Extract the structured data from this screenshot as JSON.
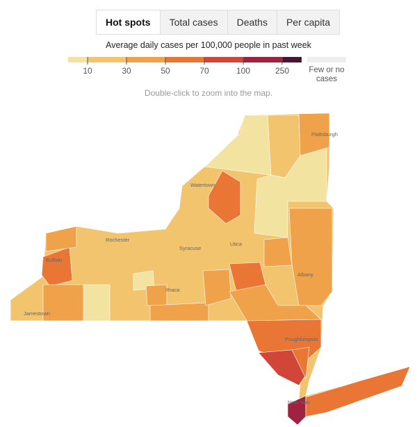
{
  "tabs": [
    "Hot spots",
    "Total cases",
    "Deaths",
    "Per capita"
  ],
  "selected_tab": 0,
  "legend": {
    "title": "Average daily cases per 100,000 people in past week",
    "colors": [
      "#f2e3a0",
      "#f2c46e",
      "#f0a24a",
      "#e97634",
      "#d2463a",
      "#9f2340",
      "#4a1535"
    ],
    "ticks": [
      10,
      30,
      50,
      70,
      100,
      250
    ],
    "no_data_label": "Few or no cases",
    "no_data_color": "#eeeeee"
  },
  "hint": "Double-click to zoom into the map.",
  "places": [
    "Plattsburgh",
    "Watertown",
    "Rochester",
    "Buffalo",
    "Syracuse",
    "Utica",
    "Albany",
    "Ithaca",
    "Jamestown",
    "Poughkeepsie",
    "New York"
  ]
}
